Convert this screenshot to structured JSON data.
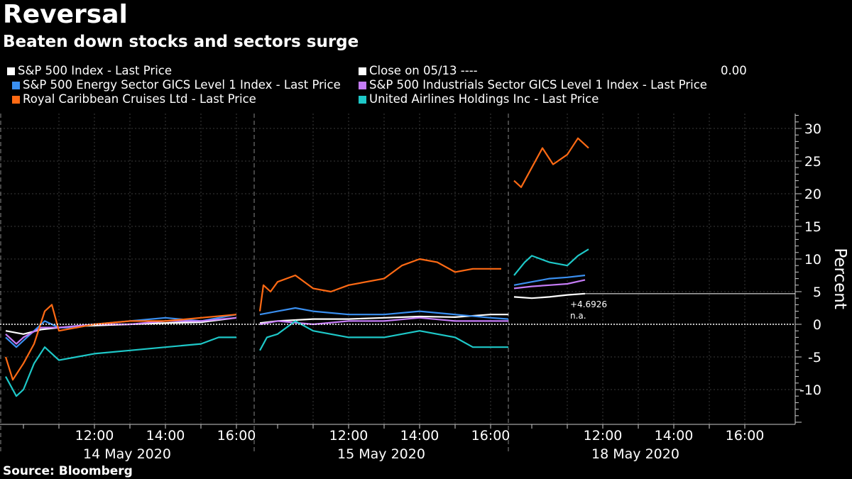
{
  "header": {
    "title": "Reversal",
    "subtitle": "Beaten down stocks and sectors surge"
  },
  "legend": [
    {
      "label": "S&P 500 Index - Last Price",
      "color": "#ffffff"
    },
    {
      "label": "Close on 05/13 ----",
      "color": "#ffffff",
      "value": "0.00"
    },
    {
      "label": "S&P 500 Energy Sector GICS Level 1 Index - Last Price",
      "color": "#3a8ff0"
    },
    {
      "label": "S&P 500 Industrials Sector GICS Level 1 Index - Last Price",
      "color": "#c57cf7"
    },
    {
      "label": "Royal Caribbean Cruises Ltd - Last Price",
      "color": "#ff6a14"
    },
    {
      "label": "United Airlines Holdings Inc - Last Price",
      "color": "#1ec8c8"
    }
  ],
  "source": "Source: Bloomberg",
  "chart_data": {
    "type": "line",
    "title": "Reversal",
    "subtitle": "Beaten down stocks and sectors surge",
    "xlabel": "",
    "ylabel": "Percent",
    "ylim": [
      -15,
      32
    ],
    "yticks": [
      30,
      25,
      20,
      15,
      10,
      5,
      0,
      -5,
      -10
    ],
    "time_ticks": [
      "12:00",
      "14:00",
      "16:00",
      "12:00",
      "14:00",
      "16:00",
      "12:00",
      "14:00",
      "16:00"
    ],
    "days": [
      "14 May 2020",
      "15 May 2020",
      "18 May 2020"
    ],
    "x_note": "x values are trading hours within each session (9.5 = 09:30, 16 = 16:00); day index 0,1,2",
    "reference_line": {
      "label": "Close on 05/13",
      "value": 0.0
    },
    "annotations": [
      {
        "text": "+4.6926"
      },
      {
        "text": "n.a."
      }
    ],
    "last_value": {
      "series": "S&P 500 Index - Last Price",
      "value": 4.6926
    },
    "series": [
      {
        "name": "S&P 500 Index - Last Price",
        "color": "#ffffff",
        "points": [
          [
            0,
            9.5,
            -1.0
          ],
          [
            0,
            10.0,
            -1.5
          ],
          [
            0,
            10.5,
            -0.8
          ],
          [
            0,
            11.0,
            -0.5
          ],
          [
            0,
            11.5,
            -0.3
          ],
          [
            0,
            12.0,
            -0.2
          ],
          [
            0,
            13.0,
            0.0
          ],
          [
            0,
            14.0,
            0.2
          ],
          [
            0,
            15.0,
            0.3
          ],
          [
            0,
            16.0,
            1.0
          ],
          [
            1,
            9.5,
            0.2
          ],
          [
            1,
            10.0,
            0.5
          ],
          [
            1,
            11.0,
            0.8
          ],
          [
            1,
            12.0,
            0.8
          ],
          [
            1,
            13.0,
            1.0
          ],
          [
            1,
            14.0,
            1.2
          ],
          [
            1,
            15.0,
            1.1
          ],
          [
            1,
            16.0,
            1.5
          ],
          [
            1,
            16.5,
            1.5
          ],
          [
            2,
            9.5,
            4.2
          ],
          [
            2,
            10.0,
            4.0
          ],
          [
            2,
            10.5,
            4.2
          ],
          [
            2,
            11.0,
            4.5
          ],
          [
            2,
            11.5,
            4.7
          ]
        ]
      },
      {
        "name": "S&P 500 Energy Sector GICS Level 1 Index - Last Price",
        "color": "#3a8ff0",
        "points": [
          [
            0,
            9.5,
            -2.0
          ],
          [
            0,
            9.8,
            -3.5
          ],
          [
            0,
            10.0,
            -2.5
          ],
          [
            0,
            10.3,
            -1.0
          ],
          [
            0,
            10.6,
            0.5
          ],
          [
            0,
            11.0,
            -0.5
          ],
          [
            0,
            11.5,
            -0.5
          ],
          [
            0,
            12.0,
            0.0
          ],
          [
            0,
            13.0,
            0.5
          ],
          [
            0,
            14.0,
            1.0
          ],
          [
            0,
            15.0,
            0.5
          ],
          [
            0,
            16.0,
            1.5
          ],
          [
            1,
            9.5,
            1.5
          ],
          [
            1,
            10.0,
            2.0
          ],
          [
            1,
            10.5,
            2.5
          ],
          [
            1,
            11.0,
            2.0
          ],
          [
            1,
            12.0,
            1.5
          ],
          [
            1,
            13.0,
            1.5
          ],
          [
            1,
            14.0,
            2.0
          ],
          [
            1,
            15.0,
            1.5
          ],
          [
            1,
            16.0,
            1.0
          ],
          [
            1,
            16.5,
            0.8
          ],
          [
            2,
            9.5,
            6.0
          ],
          [
            2,
            10.0,
            6.5
          ],
          [
            2,
            10.5,
            7.0
          ],
          [
            2,
            11.0,
            7.2
          ],
          [
            2,
            11.5,
            7.5
          ]
        ]
      },
      {
        "name": "S&P 500 Industrials Sector GICS Level 1 Index - Last Price",
        "color": "#c57cf7",
        "points": [
          [
            0,
            9.5,
            -1.5
          ],
          [
            0,
            9.8,
            -3.0
          ],
          [
            0,
            10.0,
            -2.0
          ],
          [
            0,
            10.5,
            -0.5
          ],
          [
            0,
            11.0,
            -0.5
          ],
          [
            0,
            12.0,
            0.0
          ],
          [
            0,
            13.0,
            0.0
          ],
          [
            0,
            14.0,
            0.5
          ],
          [
            0,
            15.0,
            0.5
          ],
          [
            0,
            16.0,
            1.0
          ],
          [
            1,
            9.5,
            0.0
          ],
          [
            1,
            10.0,
            0.5
          ],
          [
            1,
            11.0,
            0.0
          ],
          [
            1,
            12.0,
            0.5
          ],
          [
            1,
            13.0,
            0.5
          ],
          [
            1,
            14.0,
            1.0
          ],
          [
            1,
            15.0,
            0.5
          ],
          [
            1,
            16.0,
            0.5
          ],
          [
            1,
            16.5,
            0.5
          ],
          [
            2,
            9.5,
            5.5
          ],
          [
            2,
            10.0,
            5.8
          ],
          [
            2,
            10.5,
            6.0
          ],
          [
            2,
            11.0,
            6.2
          ],
          [
            2,
            11.5,
            6.8
          ]
        ]
      },
      {
        "name": "Royal Caribbean Cruises Ltd - Last Price",
        "color": "#ff6a14",
        "points": [
          [
            0,
            9.5,
            -5.0
          ],
          [
            0,
            9.7,
            -8.5
          ],
          [
            0,
            10.0,
            -6.0
          ],
          [
            0,
            10.3,
            -3.0
          ],
          [
            0,
            10.6,
            2.0
          ],
          [
            0,
            10.8,
            3.0
          ],
          [
            0,
            11.0,
            -1.0
          ],
          [
            0,
            11.5,
            -0.5
          ],
          [
            0,
            12.0,
            0.0
          ],
          [
            0,
            13.0,
            0.5
          ],
          [
            0,
            14.0,
            0.5
          ],
          [
            0,
            15.0,
            1.0
          ],
          [
            0,
            16.0,
            1.5
          ],
          [
            1,
            9.5,
            2.0
          ],
          [
            1,
            9.6,
            6.0
          ],
          [
            1,
            9.8,
            5.0
          ],
          [
            1,
            10.0,
            6.5
          ],
          [
            1,
            10.5,
            7.5
          ],
          [
            1,
            11.0,
            5.5
          ],
          [
            1,
            11.5,
            5.0
          ],
          [
            1,
            12.0,
            6.0
          ],
          [
            1,
            13.0,
            7.0
          ],
          [
            1,
            13.5,
            9.0
          ],
          [
            1,
            14.0,
            10.0
          ],
          [
            1,
            14.5,
            9.5
          ],
          [
            1,
            15.0,
            8.0
          ],
          [
            1,
            15.5,
            8.5
          ],
          [
            1,
            16.0,
            8.5
          ],
          [
            1,
            16.3,
            8.5
          ],
          [
            2,
            9.5,
            22.0
          ],
          [
            2,
            9.7,
            21.0
          ],
          [
            2,
            10.0,
            24.0
          ],
          [
            2,
            10.3,
            27.0
          ],
          [
            2,
            10.6,
            24.5
          ],
          [
            2,
            11.0,
            26.0
          ],
          [
            2,
            11.3,
            28.5
          ],
          [
            2,
            11.6,
            27.0
          ]
        ]
      },
      {
        "name": "United Airlines Holdings Inc - Last Price",
        "color": "#1ec8c8",
        "points": [
          [
            0,
            9.5,
            -8.0
          ],
          [
            0,
            9.8,
            -11.0
          ],
          [
            0,
            10.0,
            -10.0
          ],
          [
            0,
            10.3,
            -6.0
          ],
          [
            0,
            10.6,
            -3.5
          ],
          [
            0,
            11.0,
            -5.5
          ],
          [
            0,
            11.5,
            -5.0
          ],
          [
            0,
            12.0,
            -4.5
          ],
          [
            0,
            13.0,
            -4.0
          ],
          [
            0,
            14.0,
            -3.5
          ],
          [
            0,
            15.0,
            -3.0
          ],
          [
            0,
            15.5,
            -2.0
          ],
          [
            0,
            16.0,
            -2.0
          ],
          [
            1,
            9.5,
            -4.0
          ],
          [
            1,
            9.7,
            -2.0
          ],
          [
            1,
            10.0,
            -1.5
          ],
          [
            1,
            10.5,
            0.5
          ],
          [
            1,
            11.0,
            -1.0
          ],
          [
            1,
            11.5,
            -1.5
          ],
          [
            1,
            12.0,
            -2.0
          ],
          [
            1,
            13.0,
            -2.0
          ],
          [
            1,
            14.0,
            -1.0
          ],
          [
            1,
            15.0,
            -2.0
          ],
          [
            1,
            15.5,
            -3.5
          ],
          [
            1,
            16.0,
            -3.5
          ],
          [
            1,
            16.5,
            -3.5
          ],
          [
            2,
            9.5,
            7.5
          ],
          [
            2,
            9.8,
            9.5
          ],
          [
            2,
            10.0,
            10.5
          ],
          [
            2,
            10.5,
            9.5
          ],
          [
            2,
            11.0,
            9.0
          ],
          [
            2,
            11.3,
            10.5
          ],
          [
            2,
            11.6,
            11.5
          ]
        ]
      }
    ]
  }
}
